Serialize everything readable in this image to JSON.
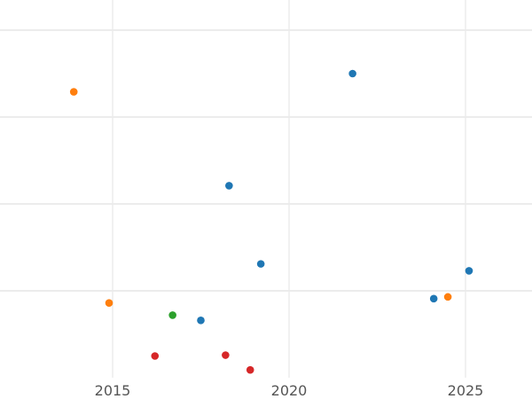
{
  "chart_data": {
    "type": "scatter",
    "title": "",
    "xlabel": "",
    "ylabel": "",
    "grid": true,
    "legend": "none",
    "xlim": [
      2011.85,
      2026.9
    ],
    "ylim": [
      0.0,
      4.5
    ],
    "x_ticks": [
      2015,
      2020,
      2025
    ],
    "y_grid_values": [
      1.0,
      2.0,
      3.0,
      4.0
    ],
    "points": [
      {
        "x": 2013.9,
        "y": 3.29,
        "color": "#ff7f0e"
      },
      {
        "x": 2014.9,
        "y": 0.86,
        "color": "#ff7f0e"
      },
      {
        "x": 2024.5,
        "y": 0.93,
        "color": "#ff7f0e"
      },
      {
        "x": 2021.8,
        "y": 3.5,
        "color": "#1f77b4"
      },
      {
        "x": 2018.3,
        "y": 2.21,
        "color": "#1f77b4"
      },
      {
        "x": 2019.2,
        "y": 1.31,
        "color": "#1f77b4"
      },
      {
        "x": 2025.1,
        "y": 1.23,
        "color": "#1f77b4"
      },
      {
        "x": 2024.1,
        "y": 0.91,
        "color": "#1f77b4"
      },
      {
        "x": 2017.5,
        "y": 0.66,
        "color": "#1f77b4"
      },
      {
        "x": 2016.7,
        "y": 0.72,
        "color": "#2ca02c"
      },
      {
        "x": 2016.2,
        "y": 0.25,
        "color": "#d62728"
      },
      {
        "x": 2018.2,
        "y": 0.26,
        "color": "#d62728"
      },
      {
        "x": 2018.9,
        "y": 0.09,
        "color": "#d62728"
      }
    ]
  }
}
